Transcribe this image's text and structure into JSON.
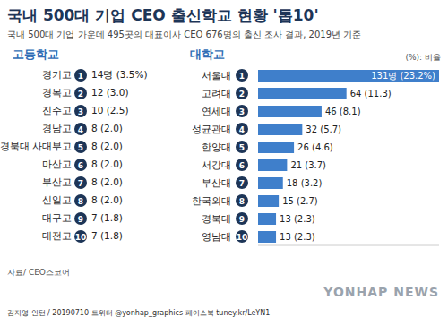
{
  "title": "국내 500대 기업 CEO 출신학교 현황 '톱10'",
  "subtitle": "국내 500대 기업 가운데 495곳의 대표이사 CEO 676명의 출신 조사 결과, 2019년 기준",
  "unit_note": "(%): 비율",
  "source": "자료/ CEO스코어",
  "credit": "김지영 인턴 / 20190710 트위터 @yonhap_graphics 페이스북 tuney.kr/LeYN1",
  "watermark": "YONHAP NEWS",
  "high_school": {
    "heading": "고등학교",
    "rows": [
      {
        "rank": 1,
        "name": "경기고",
        "value": "14명 (3.5%)"
      },
      {
        "rank": 2,
        "name": "경복고",
        "value": "12 (3.0)"
      },
      {
        "rank": 3,
        "name": "진주고",
        "value": "10 (2.5)"
      },
      {
        "rank": 4,
        "name": "경남고",
        "value": "8 (2.0)"
      },
      {
        "rank": 5,
        "name": "경북대 사대부고",
        "value": "8 (2.0)"
      },
      {
        "rank": 6,
        "name": "마산고",
        "value": "8 (2.0)"
      },
      {
        "rank": 7,
        "name": "부산고",
        "value": "8 (2.0)"
      },
      {
        "rank": 8,
        "name": "신일고",
        "value": "8 (2.0)"
      },
      {
        "rank": 9,
        "name": "대구고",
        "value": "7 (1.8)"
      },
      {
        "rank": 10,
        "name": "대전고",
        "value": "7 (1.8)"
      }
    ]
  },
  "chart_data": {
    "type": "bar",
    "title": "대학교",
    "orientation": "horizontal",
    "categories": [
      "서울대",
      "고려대",
      "연세대",
      "성균관대",
      "한양대",
      "서강대",
      "부산대",
      "한국외대",
      "경북대",
      "영남대"
    ],
    "ranks": [
      1,
      2,
      3,
      4,
      5,
      6,
      7,
      8,
      9,
      10
    ],
    "values": [
      131,
      64,
      46,
      32,
      26,
      21,
      18,
      15,
      13,
      13
    ],
    "value_labels": [
      "131명 (23.2%)",
      "64 (11.3)",
      "46 (8.1)",
      "32 (5.7)",
      "26 (4.6)",
      "21 (3.7)",
      "18 (3.2)",
      "15 (2.7)",
      "13 (2.3)",
      "13 (2.3)"
    ],
    "color": "#3f7fcb",
    "xlim": [
      0,
      131
    ],
    "xticks": [],
    "grid": false,
    "data_labels": true,
    "tick_labels": "y"
  }
}
